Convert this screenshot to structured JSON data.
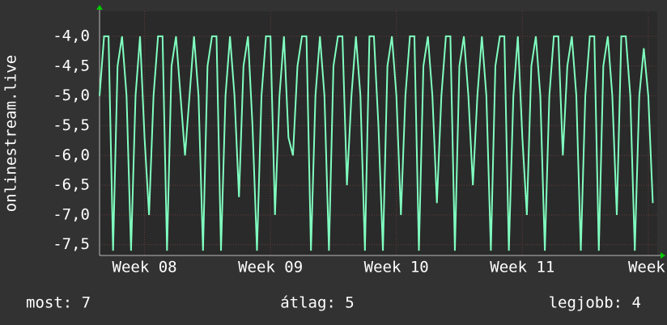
{
  "chart_data": {
    "type": "line",
    "ylabel": "onlinestream.live",
    "x": [
      0,
      0.25,
      0.5,
      0.75,
      1,
      1.25,
      1.5,
      1.75,
      2,
      2.25,
      2.5,
      2.75,
      3,
      3.25,
      3.5,
      3.75,
      4,
      4.25,
      4.5,
      4.75,
      5,
      5.25,
      5.5,
      5.75,
      6,
      6.25,
      6.5,
      6.75,
      7,
      7.25,
      7.5,
      7.75,
      8,
      8.25,
      8.5,
      8.75,
      9,
      9.25,
      9.5,
      9.75,
      10,
      10.25,
      10.5,
      10.75,
      11,
      11.25,
      11.5,
      11.75,
      12,
      12.25,
      12.5,
      12.75,
      13,
      13.25,
      13.5,
      13.75,
      14,
      14.25,
      14.5,
      14.75,
      15,
      15.25,
      15.5,
      15.75,
      16,
      16.25,
      16.5,
      16.75,
      17,
      17.25,
      17.5,
      17.75,
      18,
      18.25,
      18.5,
      18.75,
      19,
      19.25,
      19.5,
      19.75,
      20,
      20.25,
      20.5,
      20.75,
      21,
      21.25,
      21.5,
      21.75,
      22,
      22.25,
      22.5,
      22.75,
      23,
      23.25,
      23.5,
      23.75,
      24,
      24.25,
      24.5,
      24.75,
      25,
      25.25,
      25.5,
      25.75,
      26,
      26.25,
      26.5,
      26.75,
      27,
      27.25,
      27.5,
      27.75,
      28,
      28.25,
      28.5,
      28.75,
      29,
      29.25,
      29.5,
      29.75,
      30,
      30.25,
      30.5,
      30.75
    ],
    "series": [
      {
        "color": "#80ffc0",
        "values": [
          -5.0,
          -4.0,
          -4.0,
          -7.6,
          -4.5,
          -4.0,
          -5.0,
          -7.6,
          -5.0,
          -4.0,
          -5.7,
          -7.0,
          -5.0,
          -4.0,
          -4.0,
          -7.6,
          -4.5,
          -4.0,
          -5.0,
          -6.0,
          -5.0,
          -4.0,
          -5.0,
          -7.6,
          -4.5,
          -4.0,
          -4.0,
          -7.6,
          -5.0,
          -4.0,
          -5.0,
          -6.7,
          -4.5,
          -4.0,
          -5.5,
          -7.6,
          -5.0,
          -4.0,
          -4.0,
          -7.0,
          -5.0,
          -4.0,
          -5.7,
          -6.0,
          -4.5,
          -4.0,
          -4.0,
          -7.6,
          -5.0,
          -4.0,
          -5.0,
          -7.6,
          -4.5,
          -4.0,
          -4.0,
          -6.5,
          -5.0,
          -4.0,
          -5.0,
          -7.6,
          -4.0,
          -4.0,
          -5.5,
          -7.6,
          -4.5,
          -4.0,
          -5.0,
          -7.0,
          -5.0,
          -4.0,
          -4.0,
          -7.6,
          -4.5,
          -4.0,
          -5.0,
          -6.8,
          -5.0,
          -4.0,
          -4.0,
          -7.6,
          -4.5,
          -4.0,
          -5.0,
          -6.5,
          -5.0,
          -4.0,
          -5.0,
          -7.6,
          -4.5,
          -4.0,
          -4.0,
          -7.6,
          -5.0,
          -4.0,
          -5.7,
          -7.0,
          -4.5,
          -4.0,
          -5.0,
          -7.6,
          -5.0,
          -4.0,
          -4.0,
          -6.0,
          -4.5,
          -4.0,
          -5.0,
          -7.6,
          -5.0,
          -4.0,
          -4.0,
          -7.6,
          -4.5,
          -4.0,
          -5.0,
          -7.0,
          -4.0,
          -4.0,
          -5.0,
          -7.6,
          -5.0,
          -4.2,
          -5.0,
          -6.8
        ]
      }
    ],
    "xlim": [
      0,
      31
    ],
    "xticks": [
      {
        "value": 2.5,
        "label": "Week 08"
      },
      {
        "value": 9.5,
        "label": "Week 09"
      },
      {
        "value": 16.5,
        "label": "Week 10"
      },
      {
        "value": 23.5,
        "label": "Week 11"
      },
      {
        "value": 30.5,
        "label": "Week"
      }
    ],
    "ylim": [
      -7.68,
      -3.58
    ],
    "yticks": [
      {
        "value": -4.0,
        "label": "-4,0"
      },
      {
        "value": -4.5,
        "label": "-4,5"
      },
      {
        "value": -5.0,
        "label": "-5,0"
      },
      {
        "value": -5.5,
        "label": "-5,5"
      },
      {
        "value": -6.0,
        "label": "-6,0"
      },
      {
        "value": -6.5,
        "label": "-6,5"
      },
      {
        "value": -7.0,
        "label": "-7,0"
      },
      {
        "value": -7.5,
        "label": "-7,5"
      }
    ],
    "grid": true,
    "footer": [
      "most: 7",
      "átlag: 5",
      "legjobb: 4"
    ]
  }
}
